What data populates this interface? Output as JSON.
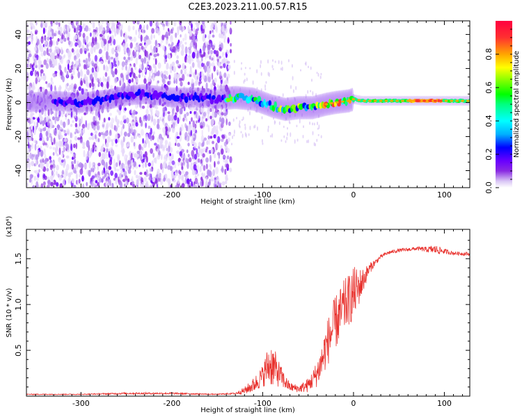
{
  "title": "C2E3.2023.211.00.57.R15",
  "chart_data": [
    {
      "type": "heatmap",
      "title": "C2E3.2023.211.00.57.R15",
      "xlabel": "Height of straight line (km)",
      "ylabel": "Frequency (Hz)",
      "xlim": [
        -360,
        128
      ],
      "ylim": [
        -50,
        48
      ],
      "xticks": [
        -300,
        -200,
        -100,
        0,
        100
      ],
      "xtick_labels": [
        "-300",
        "-200",
        "-100",
        "0",
        "100"
      ],
      "yticks": [
        -40,
        -20,
        0,
        20,
        40
      ],
      "ytick_labels": [
        "-40",
        "-20",
        "0",
        "20",
        "40"
      ],
      "ridge": {
        "x": [
          -360,
          -330,
          -300,
          -270,
          -250,
          -230,
          -200,
          -170,
          -150,
          -130,
          -110,
          -90,
          -75,
          -60,
          -45,
          -30,
          -20,
          -5,
          0,
          10,
          30,
          60,
          90,
          128
        ],
        "y": [
          0,
          1,
          0,
          2,
          4,
          5,
          3,
          3,
          2,
          3,
          2,
          -2,
          -4,
          -3,
          -3,
          -1,
          0,
          1,
          2,
          1,
          1,
          1,
          1,
          1
        ]
      },
      "colorbar": {
        "label": "Normalized spectral amplitude",
        "range": [
          0,
          1
        ],
        "ticks": [
          0.0,
          0.2,
          0.4,
          0.6,
          0.8
        ],
        "tick_labels": [
          "0.0",
          "0.2",
          "0.4",
          "0.6",
          "0.8"
        ],
        "colormap": [
          "#ffffff",
          "#d8c4f5",
          "#8a2be2",
          "#6a00ff",
          "#0000ff",
          "#00b0ff",
          "#00ffff",
          "#00ff7f",
          "#00ff00",
          "#7fff00",
          "#ffff00",
          "#ffa500",
          "#ff3030",
          "#ff0040"
        ]
      }
    },
    {
      "type": "line",
      "xlabel": "Height of straight line (km)",
      "ylabel": "SNR (10 * v/v)",
      "multiplier": "(x10⁴)",
      "xlim": [
        -360,
        128
      ],
      "ylim": [
        0,
        1.82
      ],
      "xticks": [
        -300,
        -200,
        -100,
        0,
        100
      ],
      "xtick_labels": [
        "-300",
        "-200",
        "-100",
        "0",
        "100"
      ],
      "yticks": [
        0.5,
        1.0,
        1.5
      ],
      "ytick_labels": [
        "0.5",
        "1.0",
        "1.5"
      ],
      "series": [
        {
          "name": "SNR",
          "color": "#e8302c",
          "x": [
            -360,
            -300,
            -250,
            -200,
            -150,
            -130,
            -120,
            -110,
            -100,
            -95,
            -90,
            -85,
            -80,
            -75,
            -70,
            -60,
            -50,
            -45,
            -40,
            -35,
            -30,
            -25,
            -20,
            -15,
            -10,
            -5,
            0,
            5,
            10,
            15,
            20,
            25,
            30,
            35,
            40,
            50,
            60,
            70,
            80,
            90,
            100,
            110,
            128
          ],
          "y": [
            0.02,
            0.02,
            0.03,
            0.03,
            0.02,
            0.03,
            0.06,
            0.12,
            0.22,
            0.32,
            0.35,
            0.28,
            0.22,
            0.15,
            0.1,
            0.08,
            0.12,
            0.18,
            0.25,
            0.38,
            0.55,
            0.68,
            0.8,
            0.88,
            0.98,
            1.05,
            1.12,
            1.18,
            1.25,
            1.35,
            1.42,
            1.47,
            1.52,
            1.55,
            1.57,
            1.59,
            1.6,
            1.61,
            1.6,
            1.6,
            1.58,
            1.56,
            1.55
          ],
          "noise_amplitude": [
            0.005,
            0.005,
            0.01,
            0.01,
            0.005,
            0.01,
            0.04,
            0.08,
            0.12,
            0.2,
            0.25,
            0.18,
            0.12,
            0.08,
            0.05,
            0.04,
            0.08,
            0.1,
            0.15,
            0.2,
            0.25,
            0.28,
            0.3,
            0.3,
            0.3,
            0.28,
            0.3,
            0.22,
            0.15,
            0.08,
            0.05,
            0.03,
            0.02,
            0.02,
            0.02,
            0.02,
            0.02,
            0.02,
            0.03,
            0.05,
            0.03,
            0.02,
            0.02
          ]
        }
      ]
    }
  ]
}
